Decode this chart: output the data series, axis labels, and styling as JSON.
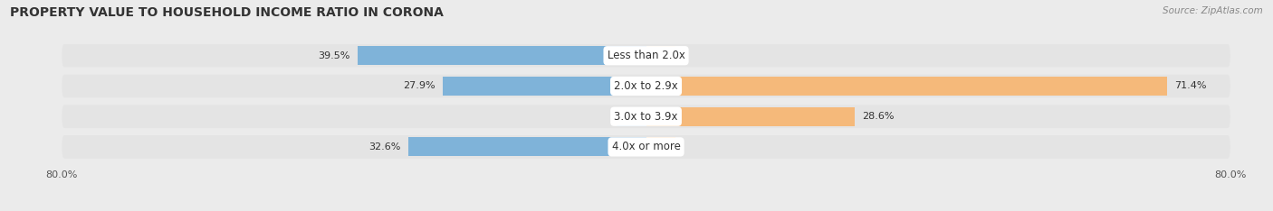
{
  "title": "PROPERTY VALUE TO HOUSEHOLD INCOME RATIO IN CORONA",
  "source": "Source: ZipAtlas.com",
  "categories": [
    "Less than 2.0x",
    "2.0x to 2.9x",
    "3.0x to 3.9x",
    "4.0x or more"
  ],
  "without_mortgage": [
    39.5,
    27.9,
    0.0,
    32.6
  ],
  "with_mortgage": [
    0.0,
    71.4,
    28.6,
    0.0
  ],
  "xlim_left": -80.0,
  "xlim_right": 80.0,
  "color_without": "#7fb3d9",
  "color_with": "#f5b97a",
  "color_without_light": "#b8d4ea",
  "color_with_light": "#f8d5ae",
  "bg_color": "#ebebeb",
  "bar_bg_color": "#e0e0e0",
  "row_bg_color": "#e4e4e4",
  "title_fontsize": 10,
  "source_fontsize": 7.5,
  "label_fontsize": 8,
  "category_fontsize": 8.5,
  "legend_fontsize": 8,
  "tick_fontsize": 8
}
